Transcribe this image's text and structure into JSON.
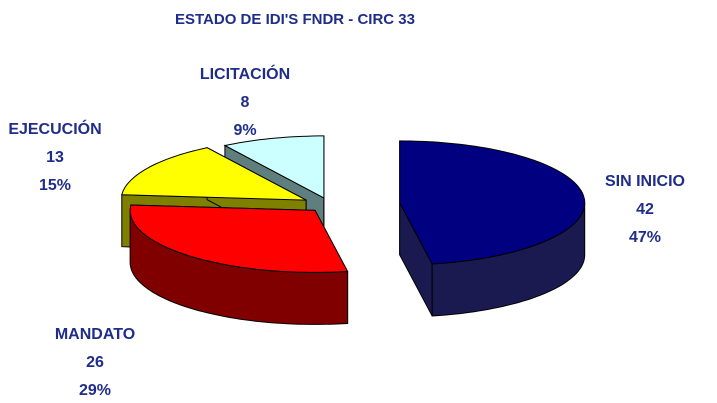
{
  "chart_data": {
    "type": "pie3d",
    "title": "ESTADO DE IDI'S FNDR - CIRC 33",
    "categories": [
      "SIN INICIO",
      "MANDATO",
      "EJECUCIÓN",
      "LICITACIÓN"
    ],
    "values": [
      42,
      26,
      13,
      8
    ],
    "percent_labels": [
      "47%",
      "29%",
      "15%",
      "9%"
    ],
    "colors": [
      "#000080",
      "#ff0000",
      "#ffff00",
      "#ccffff"
    ],
    "side_colors": [
      "#1a1a50",
      "#800000",
      "#808000",
      "#5f7f7f"
    ]
  }
}
